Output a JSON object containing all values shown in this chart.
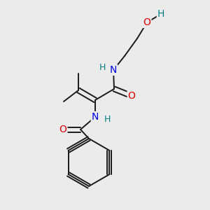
{
  "background_color": "#ebebeb",
  "bond_color": "#1a1a1a",
  "bond_width": 1.4,
  "atom_colors": {
    "C": "#1a1a1a",
    "N": "#0000e0",
    "O": "#e00000",
    "H": "#008080"
  },
  "figsize": [
    3.0,
    3.0
  ],
  "dpi": 100
}
